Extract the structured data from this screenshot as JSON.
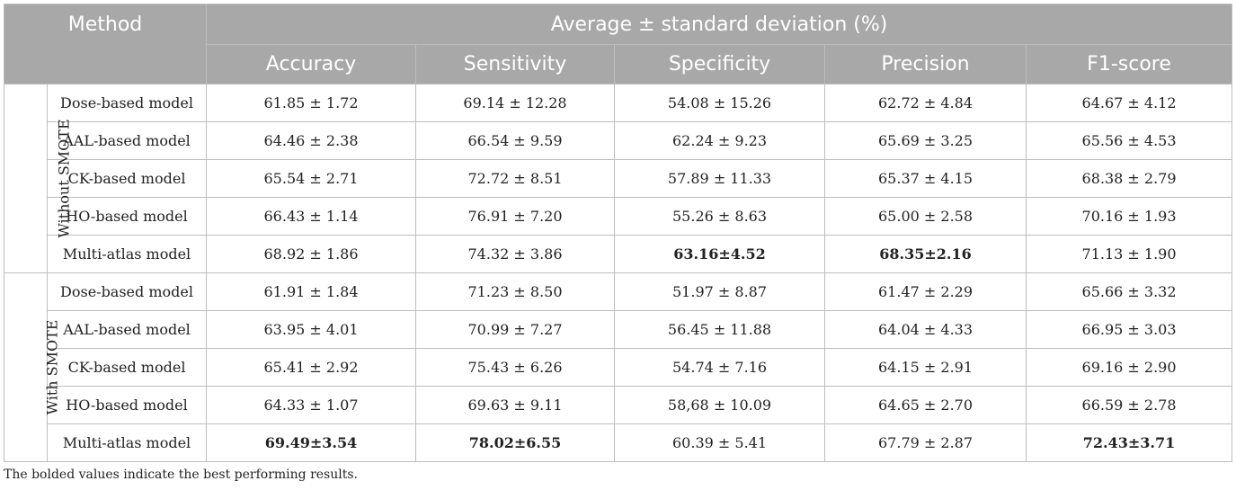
{
  "header": {
    "method": "Method",
    "group_title": "Average ± standard deviation (%)",
    "metrics": [
      "Accuracy",
      "Sensitivity",
      "Specificity",
      "Precision",
      "F1-score"
    ]
  },
  "groups": [
    {
      "label": "Without SMOTE",
      "rows": [
        {
          "model": "Dose-based model",
          "values": [
            "61.85 ± 1.72",
            "69.14 ± 12.28",
            "54.08 ± 15.26",
            "62.72 ± 4.84",
            "64.67 ± 4.12"
          ],
          "bold": [
            false,
            false,
            false,
            false,
            false
          ]
        },
        {
          "model": "AAL-based model",
          "values": [
            "64.46 ± 2.38",
            "66.54 ± 9.59",
            "62.24 ± 9.23",
            "65.69 ± 3.25",
            "65.56 ± 4.53"
          ],
          "bold": [
            false,
            false,
            false,
            false,
            false
          ]
        },
        {
          "model": "CK-based model",
          "values": [
            "65.54 ± 2.71",
            "72.72 ± 8.51",
            "57.89 ± 11.33",
            "65.37 ± 4.15",
            "68.38 ± 2.79"
          ],
          "bold": [
            false,
            false,
            false,
            false,
            false
          ]
        },
        {
          "model": "HO-based model",
          "values": [
            "66.43 ± 1.14",
            "76.91 ± 7.20",
            "55.26 ± 8.63",
            "65.00 ± 2.58",
            "70.16 ± 1.93"
          ],
          "bold": [
            false,
            false,
            false,
            false,
            false
          ]
        },
        {
          "model": "Multi-atlas model",
          "values": [
            "68.92 ± 1.86",
            "74.32 ± 3.86",
            "63.16±4.52",
            "68.35±2.16",
            "71.13 ± 1.90"
          ],
          "bold": [
            false,
            false,
            true,
            true,
            false
          ]
        }
      ]
    },
    {
      "label": "With SMOTE",
      "rows": [
        {
          "model": "Dose-based model",
          "values": [
            "61.91 ± 1.84",
            "71.23 ± 8.50",
            "51.97 ± 8.87",
            "61.47 ± 2.29",
            "65.66 ± 3.32"
          ],
          "bold": [
            false,
            false,
            false,
            false,
            false
          ]
        },
        {
          "model": "AAL-based model",
          "values": [
            "63.95 ± 4.01",
            "70.99 ± 7.27",
            "56.45 ± 11.88",
            "64.04 ± 4.33",
            "66.95 ± 3.03"
          ],
          "bold": [
            false,
            false,
            false,
            false,
            false
          ]
        },
        {
          "model": "CK-based model",
          "values": [
            "65.41 ± 2.92",
            "75.43 ± 6.26",
            "54.74 ± 7.16",
            "64.15 ± 2.91",
            "69.16 ± 2.90"
          ],
          "bold": [
            false,
            false,
            false,
            false,
            false
          ]
        },
        {
          "model": "HO-based model",
          "values": [
            "64.33 ± 1.07",
            "69.63 ± 9.11",
            "58,68 ± 10.09",
            "64.65 ± 2.70",
            "66.59 ± 2.78"
          ],
          "bold": [
            false,
            false,
            false,
            false,
            false
          ]
        },
        {
          "model": "Multi-atlas model",
          "values": [
            "69.49±3.54",
            "78.02±6.55",
            "60.39 ± 5.41",
            "67.79 ± 2.87",
            "72.43±3.71"
          ],
          "bold": [
            true,
            true,
            false,
            false,
            true
          ]
        }
      ]
    }
  ],
  "footnote": "The bolded values indicate the best performing results."
}
